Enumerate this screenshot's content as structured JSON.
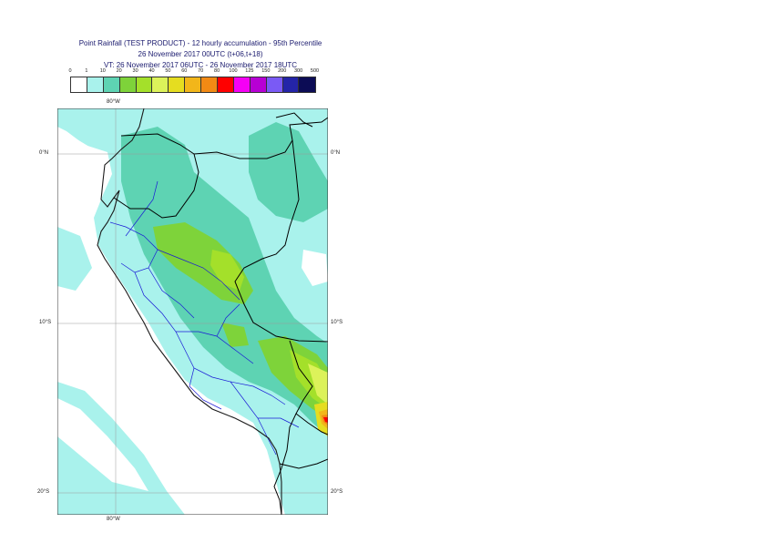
{
  "title": {
    "line1": "Point Rainfall (TEST PRODUCT) - 12 hourly accumulation - 95th Percentile",
    "line2": "26 November 2017 00UTC (t+06,t+18)",
    "line3": "VT: 26 November 2017 06UTC - 26 November 2017 18UTC"
  },
  "legend": {
    "thresholds": [
      "0",
      "1",
      "10",
      "20",
      "30",
      "40",
      "50",
      "60",
      "70",
      "80",
      "100",
      "125",
      "150",
      "200",
      "300",
      "500"
    ],
    "colors": [
      "#ffffff",
      "#a9f2ec",
      "#5ed3b3",
      "#7ed33a",
      "#a4e02a",
      "#dcf25a",
      "#e5dd20",
      "#f2b61a",
      "#f28a14",
      "#ff0000",
      "#f500f5",
      "#b700d4",
      "#7a5af5",
      "#2424a8",
      "#0c0c55"
    ]
  },
  "map": {
    "lat_labels_left": [
      "0°N",
      "10°S",
      "20°S"
    ],
    "lat_labels_right": [
      "0°N",
      "10°S",
      "20°S"
    ],
    "lon_label_top": "80°W",
    "lon_label_bottom": "80°W",
    "colors": {
      "ocean": "#ffffff",
      "coast": "#1a1a1a",
      "borders": "#000000",
      "regions": "#1a1ad6"
    }
  }
}
